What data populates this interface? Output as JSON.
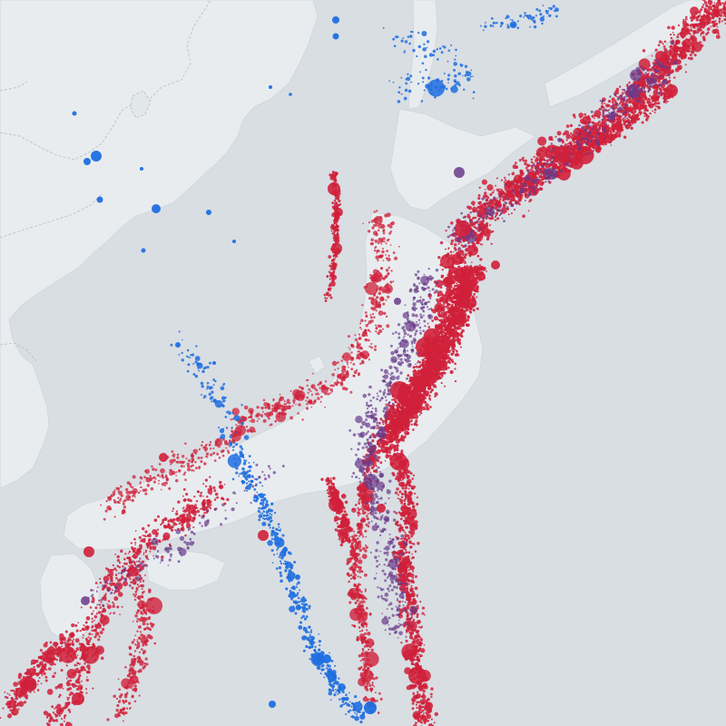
{
  "map": {
    "colors": {
      "ocean": "#d9dee3",
      "land": "#e8ecef",
      "land_shade": "#e2e7ea",
      "border": "#b7bcc1",
      "coast": "#cfd5da",
      "deep_quake": "#1f6fe0",
      "intermediate_quake": "#6a3a8a",
      "shallow_quake": "#d0203a"
    },
    "layers": [
      "land",
      "country-borders",
      "earthquake-points"
    ],
    "legend": null
  }
}
